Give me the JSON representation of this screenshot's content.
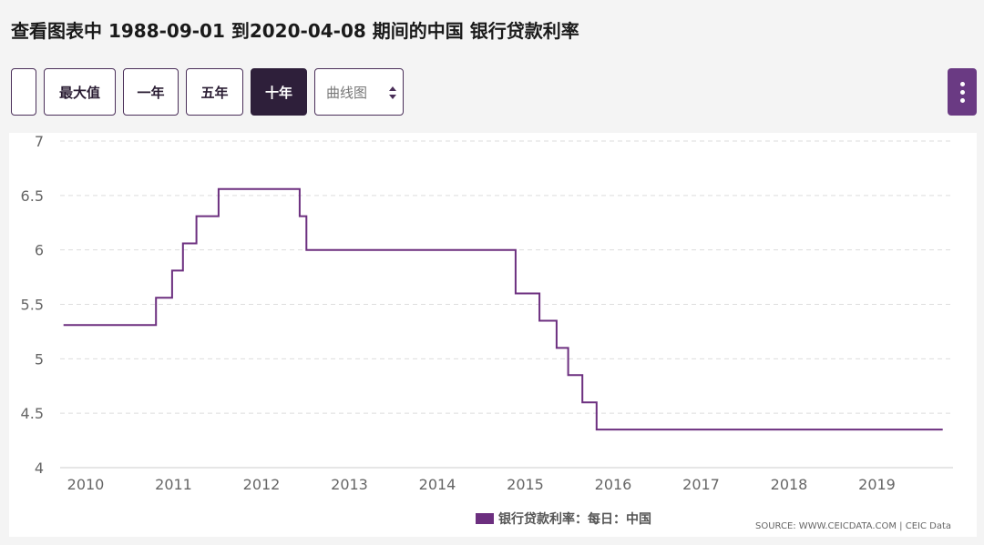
{
  "page": {
    "title": "查看图表中 1988-09-01 到2020-04-08 期间的中国 银行贷款利率"
  },
  "toolbar": {
    "blank_label": "",
    "max_label": "最大值",
    "one_year_label": "一年",
    "five_year_label": "五年",
    "ten_year_label": "十年",
    "selected_range": "十年",
    "chart_type_value": "曲线图",
    "menu_icon": "vertical-dots-icon"
  },
  "colors": {
    "accent": "#6c2f7f",
    "selected_button": "#2e1f3a",
    "menu_button": "#6a3a83",
    "gridline": "#dddddd"
  },
  "chart_data": {
    "type": "line",
    "step": true,
    "title": "",
    "xlabel": "",
    "ylabel": "",
    "ylim": [
      4,
      7
    ],
    "yticks": [
      "4",
      "4.5",
      "5",
      "5.5",
      "6",
      "6.5",
      "7"
    ],
    "xticks": [
      "2010",
      "2011",
      "2012",
      "2013",
      "2014",
      "2015",
      "2016",
      "2017",
      "2018",
      "2019"
    ],
    "grid": true,
    "legend_position": "bottom",
    "series": [
      {
        "name": "银行贷款利率：每日：中国",
        "points": [
          [
            "2009-10-01",
            5.31
          ],
          [
            "2010-10-20",
            5.56
          ],
          [
            "2010-12-26",
            5.81
          ],
          [
            "2011-02-09",
            6.06
          ],
          [
            "2011-04-06",
            6.31
          ],
          [
            "2011-07-07",
            6.56
          ],
          [
            "2012-06-08",
            6.31
          ],
          [
            "2012-07-06",
            6.0
          ],
          [
            "2014-11-22",
            5.6
          ],
          [
            "2015-03-01",
            5.35
          ],
          [
            "2015-05-11",
            5.1
          ],
          [
            "2015-06-28",
            4.85
          ],
          [
            "2015-08-26",
            4.6
          ],
          [
            "2015-10-24",
            4.35
          ],
          [
            "2019-10-01",
            4.35
          ]
        ]
      }
    ]
  },
  "legend": {
    "label": "银行贷款利率：每日：中国"
  },
  "footer": {
    "source": "SOURCE: WWW.CEICDATA.COM | CEIC Data"
  }
}
